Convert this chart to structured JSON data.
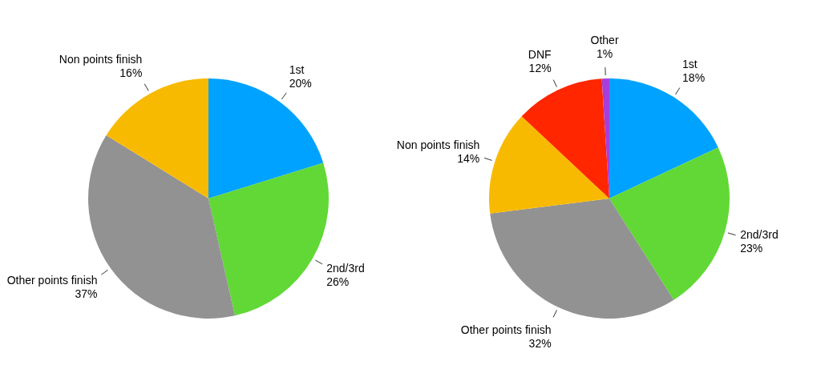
{
  "chart_data": [
    {
      "type": "pie",
      "categories": [
        "1st",
        "2nd/3rd",
        "Other points finish",
        "Non points finish"
      ],
      "values": [
        20,
        26,
        37,
        16
      ],
      "value_labels": [
        "20%",
        "26%",
        "37%",
        "16%"
      ],
      "colors": [
        "#00a2ff",
        "#61d836",
        "#929292",
        "#f8ba00"
      ]
    },
    {
      "type": "pie",
      "categories": [
        "1st",
        "2nd/3rd",
        "Other points finish",
        "Non points finish",
        "DNF",
        "Other"
      ],
      "values": [
        18,
        23,
        32,
        14,
        12,
        1
      ],
      "value_labels": [
        "18%",
        "23%",
        "32%",
        "14%",
        "12%",
        "1%"
      ],
      "colors": [
        "#00a2ff",
        "#61d836",
        "#929292",
        "#f8ba00",
        "#ff2600",
        "#a63fd9"
      ]
    }
  ]
}
